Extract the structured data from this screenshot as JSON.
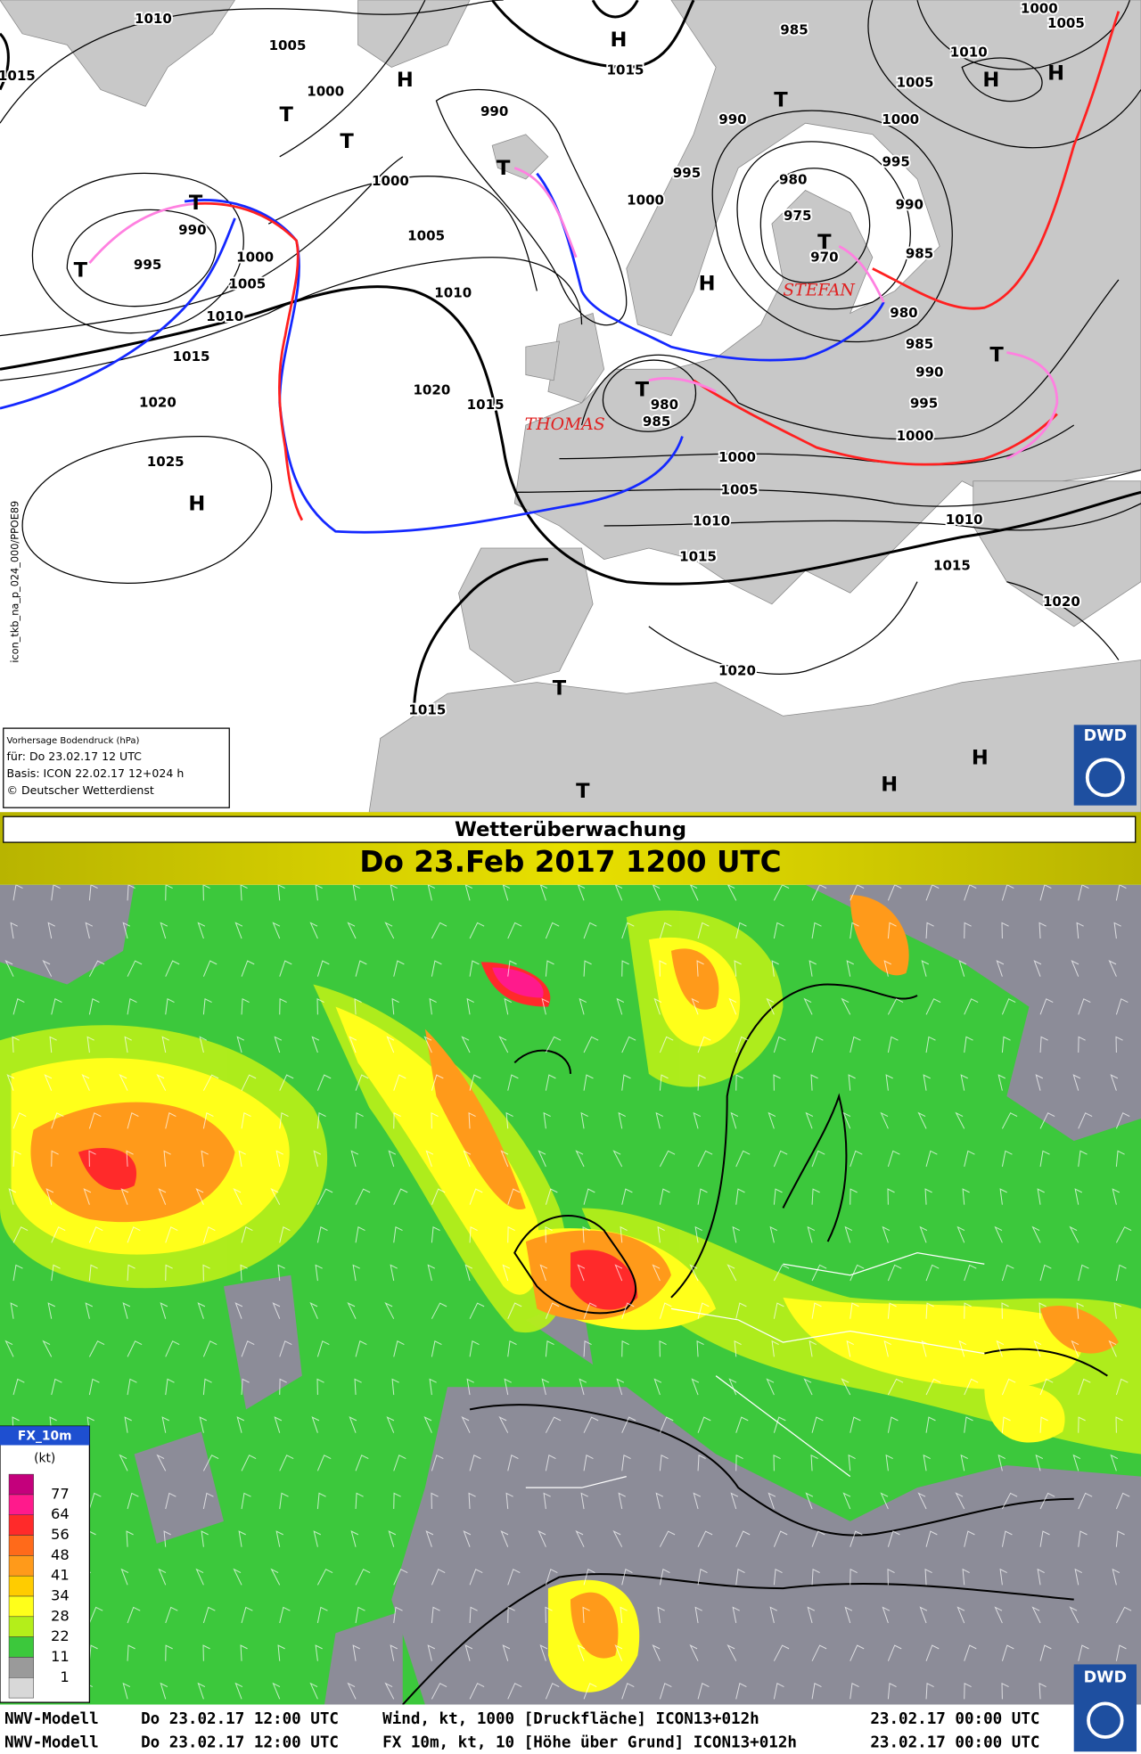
{
  "top_map": {
    "pressure_labels": [
      1010,
      1005,
      1015,
      1000,
      990,
      1015,
      985,
      990,
      1000,
      1005,
      1010,
      1005,
      1000,
      995,
      990,
      985,
      980,
      985,
      990,
      995,
      1000,
      1000,
      995,
      980,
      975,
      970,
      1000,
      990,
      995,
      1000,
      1005,
      1010,
      1015,
      1020,
      1025,
      1005,
      1010,
      1020,
      1015,
      980,
      985,
      1000,
      1005,
      1010,
      1015,
      1010,
      1015,
      1020,
      1020,
      1015
    ],
    "pressure_centers": [
      "H",
      "H",
      "H",
      "H",
      "T",
      "T",
      "T",
      "T",
      "T",
      "T",
      "T",
      "H",
      "T",
      "T",
      "H",
      "T",
      "T",
      "H",
      "H"
    ],
    "storm_names": [
      "STEFAN",
      "THOMAS"
    ],
    "info_box": [
      "Vorhersage Bodendruck (hPa)",
      "für:  Do 23.02.17  12 UTC",
      "Basis: ICON  22.02.17 12+024 h",
      "© Deutscher Wetterdienst"
    ],
    "side_label": "icon_tkb_na_p_024_000/PPOE89",
    "logo": "DWD"
  },
  "header": {
    "title": "Wetterüberwachung",
    "date": "Do 23.Feb 2017 1200 UTC"
  },
  "bottom_map": {
    "legend": {
      "title": "FX_10m",
      "unit": "(kt)",
      "levels": [
        77,
        64,
        56,
        48,
        41,
        34,
        28,
        22,
        11,
        1
      ],
      "colors": [
        "#c4007c",
        "#ff1a8c",
        "#ff2a2a",
        "#ff6a1a",
        "#ff9a1a",
        "#ffcc00",
        "#ffff1a",
        "#b4ee1a",
        "#3cc83c",
        "#9a9a9a",
        "#d8d8d8"
      ]
    },
    "footer": [
      [
        "NWV-Modell",
        "Do 23.02.17 12:00 UTC",
        "Wind, kt, 1000 [Druckfläche] ICON13+012h",
        "23.02.17 00:00 UTC"
      ],
      [
        "NWV-Modell",
        "Do 23.02.17 12:00 UTC",
        "FX 10m, kt, 10 [Höhe über Grund] ICON13+012h",
        "23.02.17 00:00 UTC"
      ]
    ],
    "logo": "DWD"
  }
}
